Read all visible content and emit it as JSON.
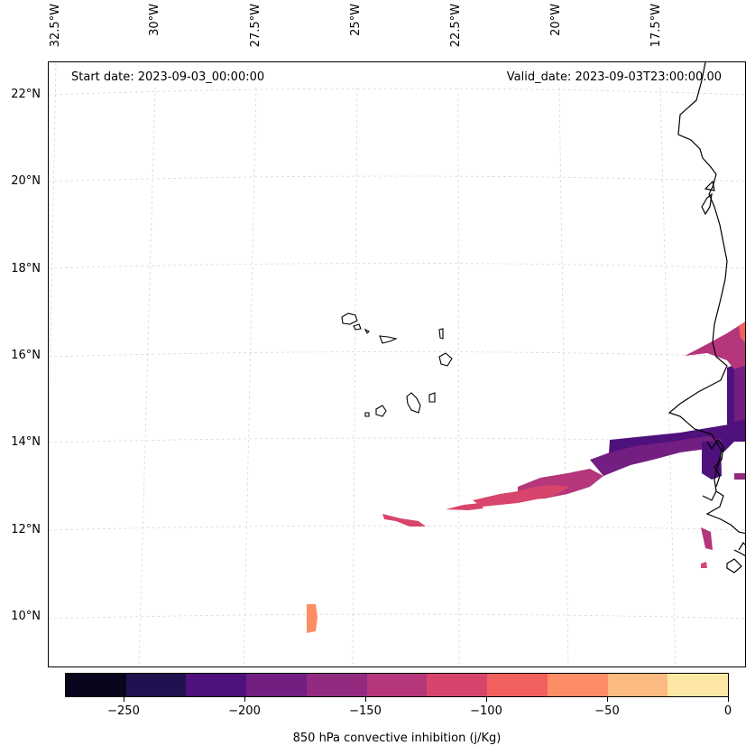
{
  "header": {
    "start_date": "Start date: 2023-09-03_00:00:00",
    "valid_date": "Valid_date: 2023-09-03T23:00:00.00"
  },
  "axes": {
    "longitudes": [
      "32.5°W",
      "30°W",
      "27.5°W",
      "25°W",
      "22.5°W",
      "20°W",
      "17.5°W"
    ],
    "latitudes": [
      "22°N",
      "20°N",
      "18°N",
      "16°N",
      "14°N",
      "12°N",
      "10°N"
    ]
  },
  "colorbar": {
    "title": "850 hPa convective inhibition (j/Kg)",
    "ticks": [
      "−250",
      "−200",
      "−150",
      "−100",
      "−50",
      "0"
    ],
    "colors": [
      "#07061c",
      "#221150",
      "#4f117b",
      "#721f81",
      "#922a80",
      "#b5367a",
      "#d8456c",
      "#f1605d",
      "#fd8d64",
      "#febb81",
      "#fde7a4"
    ]
  },
  "colors": {
    "coast": "#000000",
    "grid": "#d9d9d9"
  }
}
